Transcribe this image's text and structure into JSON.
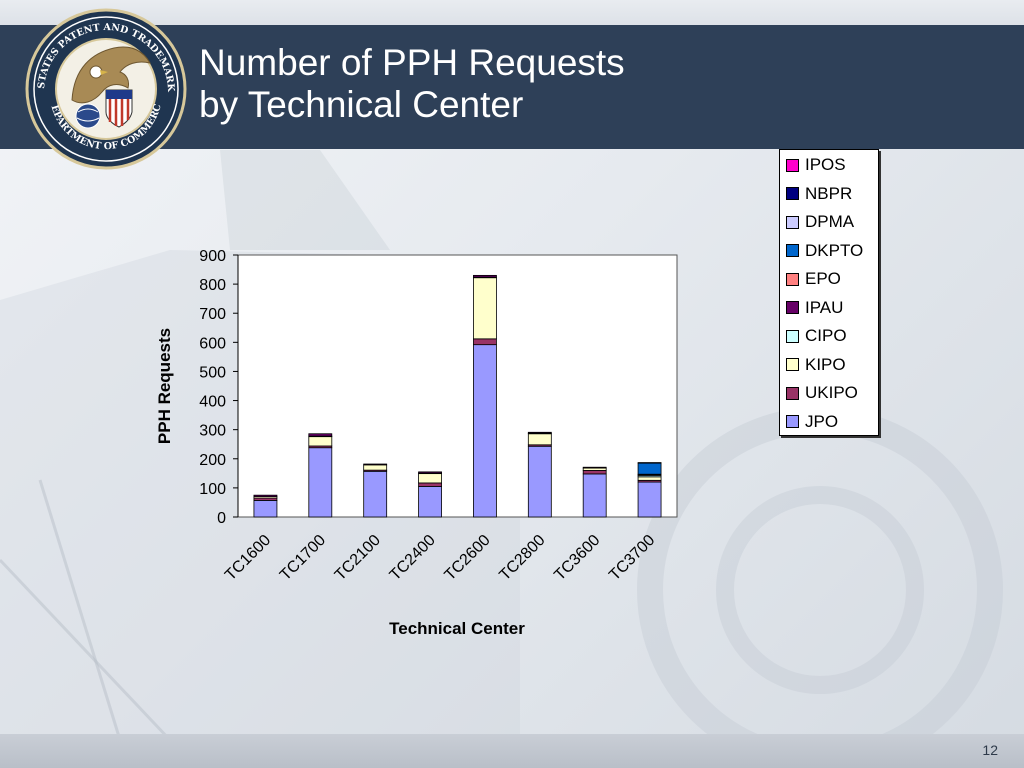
{
  "title": {
    "line1": "Number of PPH Requests",
    "line2": "by Technical Center"
  },
  "seal": {
    "top_text": "UNITED STATES PATENT AND TRADEMARK OFFICE",
    "bottom_text": "DEPARTMENT OF COMMERCE"
  },
  "page_number": "12",
  "colors": {
    "header": "#2e4058",
    "IPOS": "#ff00cc",
    "NBPR": "#000080",
    "DPMA": "#ccccff",
    "DKPTO": "#0066cc",
    "EPO": "#ff8080",
    "IPAU": "#660066",
    "CIPO": "#ccffff",
    "KIPO": "#ffffcc",
    "UKIPO": "#993366",
    "JPO": "#9999ff"
  },
  "chart_data": {
    "type": "bar",
    "stacked": true,
    "xlabel": "Technical Center",
    "ylabel": "PPH Requests",
    "ylim": [
      0,
      900
    ],
    "yticks": [
      0,
      100,
      200,
      300,
      400,
      500,
      600,
      700,
      800,
      900
    ],
    "categories": [
      "TC1600",
      "TC1700",
      "TC2100",
      "TC2400",
      "TC2600",
      "TC2800",
      "TC3600",
      "TC3700"
    ],
    "legend_position": "top-right",
    "series": [
      {
        "name": "JPO",
        "values": [
          57,
          238,
          157,
          105,
          592,
          243,
          148,
          120
        ]
      },
      {
        "name": "UKIPO",
        "values": [
          8,
          6,
          4,
          12,
          20,
          5,
          12,
          6
        ]
      },
      {
        "name": "KIPO",
        "values": [
          5,
          32,
          18,
          32,
          210,
          38,
          8,
          12
        ]
      },
      {
        "name": "CIPO",
        "values": [
          0,
          2,
          0,
          2,
          2,
          2,
          0,
          5
        ]
      },
      {
        "name": "IPAU",
        "values": [
          5,
          8,
          3,
          4,
          6,
          3,
          3,
          2
        ]
      },
      {
        "name": "EPO",
        "values": [
          0,
          0,
          0,
          0,
          0,
          0,
          0,
          2
        ]
      },
      {
        "name": "DKPTO",
        "values": [
          0,
          0,
          0,
          0,
          0,
          0,
          0,
          38
        ]
      },
      {
        "name": "DPMA",
        "values": [
          0,
          0,
          0,
          0,
          0,
          0,
          0,
          2
        ]
      },
      {
        "name": "NBPR",
        "values": [
          0,
          0,
          0,
          0,
          0,
          0,
          0,
          0
        ]
      },
      {
        "name": "IPOS",
        "values": [
          0,
          0,
          0,
          0,
          0,
          0,
          0,
          0
        ]
      }
    ],
    "legend_order": [
      "IPOS",
      "NBPR",
      "DPMA",
      "DKPTO",
      "EPO",
      "IPAU",
      "CIPO",
      "KIPO",
      "UKIPO",
      "JPO"
    ]
  }
}
